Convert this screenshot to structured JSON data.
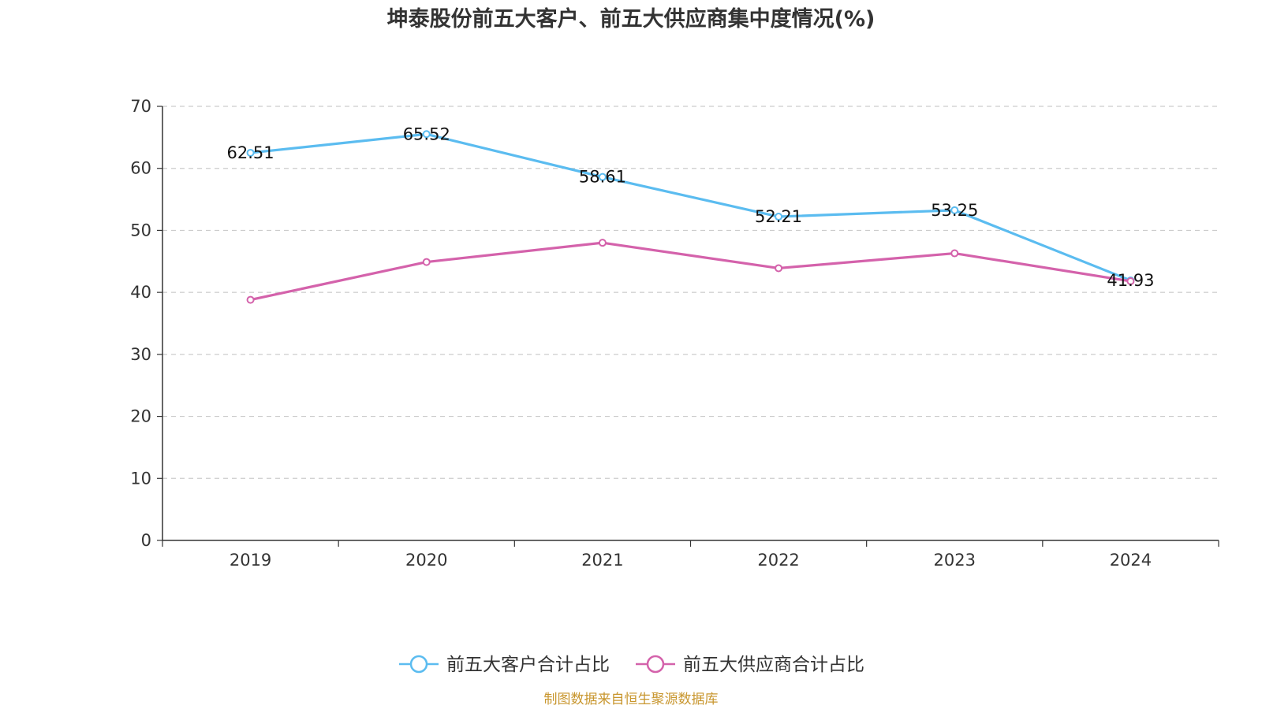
{
  "chart_data": {
    "type": "line",
    "title": "坤泰股份前五大客户、前五大供应商集中度情况(%)",
    "categories": [
      "2019",
      "2020",
      "2021",
      "2022",
      "2023",
      "2024"
    ],
    "ylim": [
      0,
      70
    ],
    "yticks": [
      0,
      10,
      20,
      30,
      40,
      50,
      60,
      70
    ],
    "grid": true,
    "legend_position": "bottom",
    "series": [
      {
        "name": "前五大客户合计占比",
        "color": "#5bbcf0",
        "values": [
          62.51,
          65.52,
          58.61,
          52.21,
          53.25,
          41.93
        ],
        "labels": [
          "62.51",
          "65.52",
          "58.61",
          "52.21",
          "53.25",
          "41.93"
        ]
      },
      {
        "name": "前五大供应商合计占比",
        "color": "#d462ab",
        "values": [
          38.8,
          44.9,
          48.0,
          43.9,
          46.3,
          41.8
        ],
        "labels": []
      }
    ],
    "source": "制图数据来自恒生聚源数据库",
    "source_color": "#c8962e"
  }
}
